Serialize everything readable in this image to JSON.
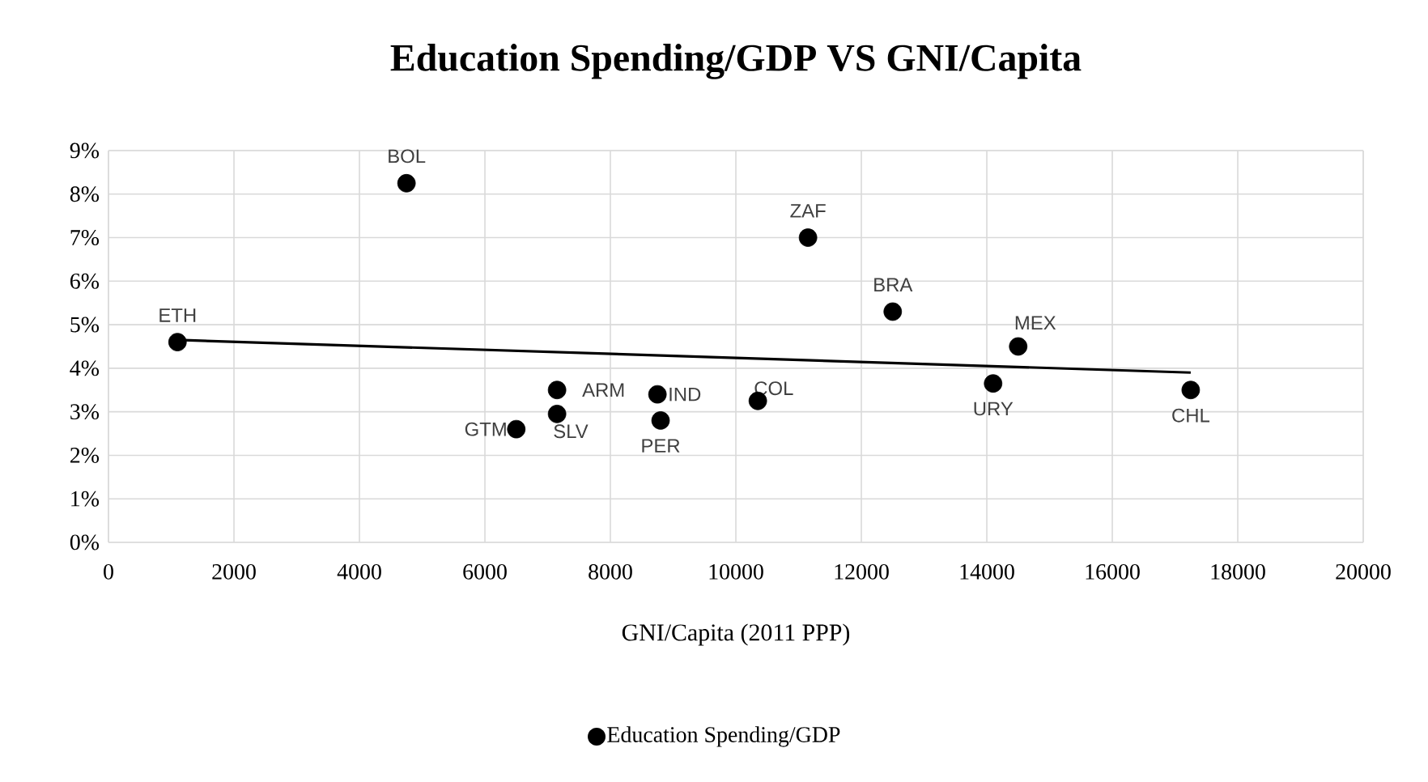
{
  "chart_data": {
    "type": "scatter",
    "title": "Education Spending/GDP VS GNI/Capita",
    "xlabel": "GNI/Capita (2011 PPP)",
    "x": [
      1100,
      4750,
      6500,
      7150,
      7150,
      8750,
      8800,
      10350,
      11150,
      12500,
      14100,
      14500,
      17250
    ],
    "series": [
      {
        "name": "Education Spending/GDP",
        "color": "#000000",
        "marker": "circle",
        "values": [
          4.6,
          8.25,
          2.6,
          2.95,
          3.5,
          3.4,
          2.8,
          3.25,
          7.0,
          5.3,
          3.65,
          4.5,
          3.5
        ]
      },
      {
        "color": "#000000",
        "type": "line",
        "marker": "none",
        "line_style": "solid",
        "x": [
          1100,
          17250
        ],
        "values": [
          4.65,
          3.9
        ]
      }
    ],
    "annotations": [
      {
        "text": "ETH",
        "x": 1100,
        "y": 4.6
      },
      {
        "text": "BOL",
        "x": 4750,
        "y": 8.25
      },
      {
        "text": "GTM",
        "x": 6500,
        "y": 2.6
      },
      {
        "text": "SLV",
        "x": 7150,
        "y": 2.95
      },
      {
        "text": "ARM",
        "x": 7150,
        "y": 3.5
      },
      {
        "text": "IND",
        "x": 8750,
        "y": 3.4
      },
      {
        "text": "PER",
        "x": 8800,
        "y": 2.8
      },
      {
        "text": "COL",
        "x": 10350,
        "y": 3.25
      },
      {
        "text": "ZAF",
        "x": 11150,
        "y": 7.0
      },
      {
        "text": "BRA",
        "x": 12500,
        "y": 5.3
      },
      {
        "text": "URY",
        "x": 14100,
        "y": 3.65
      },
      {
        "text": "MEX",
        "x": 14500,
        "y": 4.5
      },
      {
        "text": "CHL",
        "x": 17250,
        "y": 3.5
      }
    ],
    "xlim": [
      0,
      20000
    ],
    "xticks": [
      0,
      2000,
      4000,
      6000,
      8000,
      10000,
      12000,
      14000,
      16000,
      18000,
      20000
    ],
    "ylim": [
      0,
      9
    ],
    "yticks": [
      {
        "value": 0,
        "label": "0%"
      },
      {
        "value": 1,
        "label": "1%"
      },
      {
        "value": 2,
        "label": "2%"
      },
      {
        "value": 3,
        "label": "3%"
      },
      {
        "value": 4,
        "label": "4%"
      },
      {
        "value": 5,
        "label": "5%"
      },
      {
        "value": 6,
        "label": "6%"
      },
      {
        "value": 7,
        "label": "7%"
      },
      {
        "value": 8,
        "label": "8%"
      },
      {
        "value": 9,
        "label": "9%"
      }
    ],
    "grid": true,
    "legend": "bottom"
  }
}
